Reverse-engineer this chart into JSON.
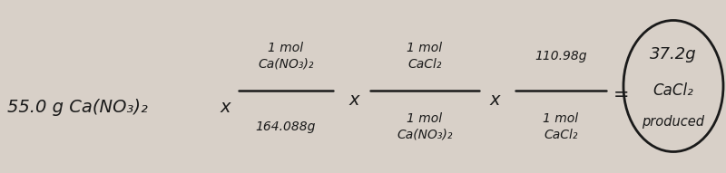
{
  "bg_color": "#d8d0c8",
  "text_color": "#1a1a1a",
  "fig_width": 8.0,
  "fig_height": 1.91,
  "dpi": 100,
  "frac1_num": "1 mol\nCa(NO₃)₂",
  "frac1_den": "164.088g",
  "frac2_num": "1 mol\nCaCl₂",
  "frac2_den": "1 mol\nCa(NO₃)₂",
  "frac3_num": "110.98g",
  "frac3_den": "1 mol\nCaCl₂",
  "given_text": "55.0 g Ca(NO₃)₂",
  "result1": "37.2g",
  "result2": "CaCl₂",
  "result3": "produced"
}
